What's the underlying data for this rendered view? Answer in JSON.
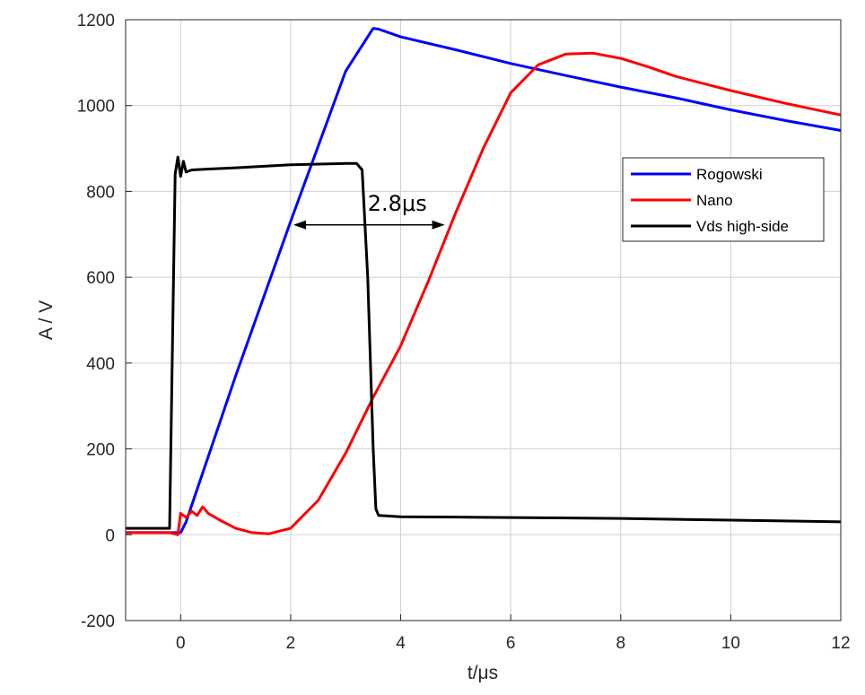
{
  "chart_data": {
    "type": "line",
    "title": "",
    "xlabel": "t/μs",
    "ylabel": "A / V",
    "xlim": [
      -1,
      12
    ],
    "ylim": [
      -200,
      1200
    ],
    "xticks": [
      0,
      2,
      4,
      6,
      8,
      10,
      12
    ],
    "yticks": [
      -200,
      0,
      200,
      400,
      600,
      800,
      1000,
      1200
    ],
    "grid": true,
    "legend_position": "top-right",
    "series": [
      {
        "name": "Rogowski",
        "color": "#0000ff",
        "x": [
          -1,
          0,
          0.1,
          1,
          2,
          3,
          3.5,
          3.6,
          4,
          5,
          6,
          7,
          8,
          9,
          10,
          11,
          12
        ],
        "y": [
          5,
          5,
          30,
          370,
          730,
          1080,
          1180,
          1178,
          1160,
          1130,
          1098,
          1070,
          1043,
          1018,
          990,
          965,
          942
        ]
      },
      {
        "name": "Nano",
        "color": "#ff0000",
        "x": [
          -1,
          -0.2,
          -0.05,
          0,
          0.1,
          0.2,
          0.3,
          0.4,
          0.5,
          0.7,
          1,
          1.3,
          1.6,
          2,
          2.5,
          3,
          3.5,
          4,
          4.5,
          5,
          5.5,
          6,
          6.5,
          7,
          7.5,
          8,
          8.5,
          9,
          10,
          11,
          12
        ],
        "y": [
          5,
          5,
          0,
          50,
          40,
          55,
          45,
          65,
          50,
          35,
          15,
          5,
          2,
          15,
          80,
          190,
          320,
          440,
          590,
          750,
          900,
          1030,
          1095,
          1120,
          1122,
          1110,
          1090,
          1068,
          1035,
          1005,
          978
        ]
      },
      {
        "name": "Vds high-side",
        "color": "#000000",
        "x": [
          -1,
          -0.2,
          -0.1,
          -0.05,
          0,
          0.05,
          0.1,
          0.2,
          0.5,
          1,
          2,
          3,
          3.2,
          3.3,
          3.4,
          3.5,
          3.55,
          3.6,
          4,
          6,
          8,
          10,
          12
        ],
        "y": [
          15,
          15,
          840,
          880,
          835,
          870,
          845,
          850,
          852,
          855,
          862,
          865,
          865,
          850,
          600,
          200,
          60,
          45,
          42,
          40,
          38,
          34,
          30
        ]
      }
    ],
    "annotations": [
      {
        "text": "2.8μs",
        "x": 3.4,
        "y": 755,
        "arrow_from": 2.05,
        "arrow_to": 4.8,
        "arrow_y": 722
      }
    ]
  }
}
